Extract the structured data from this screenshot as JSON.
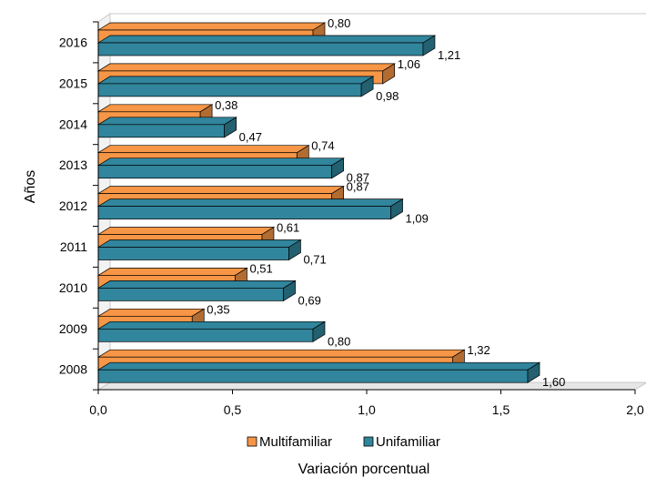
{
  "chart_data": {
    "type": "bar",
    "orientation": "horizontal",
    "title": "",
    "xlabel": "Variación porcentual",
    "ylabel": "Años",
    "categories": [
      "2008",
      "2009",
      "2010",
      "2011",
      "2012",
      "2013",
      "2014",
      "2015",
      "2016"
    ],
    "series": [
      {
        "name": "Multifamiliar",
        "color": "#F79646",
        "values": [
          1.32,
          0.35,
          0.51,
          0.61,
          0.87,
          0.74,
          0.38,
          1.06,
          0.8
        ],
        "labels": [
          "1,32",
          "0,35",
          "0,51",
          "0,61",
          "0,87",
          "0,74",
          "0,38",
          "1,06",
          "0,80"
        ]
      },
      {
        "name": "Unifamiliar",
        "color": "#31859C",
        "values": [
          1.6,
          0.8,
          0.69,
          0.71,
          1.09,
          0.87,
          0.47,
          0.98,
          1.21
        ],
        "labels": [
          "1,60",
          "0,80",
          "0,69",
          "0,71",
          "1,09",
          "0,87",
          "0,47",
          "0,98",
          "1,21"
        ]
      }
    ],
    "xlim": [
      0,
      2
    ],
    "x_ticks": [
      "0,0",
      "0,5",
      "1,0",
      "1,5",
      "2,0"
    ],
    "grid": false,
    "legend_position": "bottom"
  }
}
